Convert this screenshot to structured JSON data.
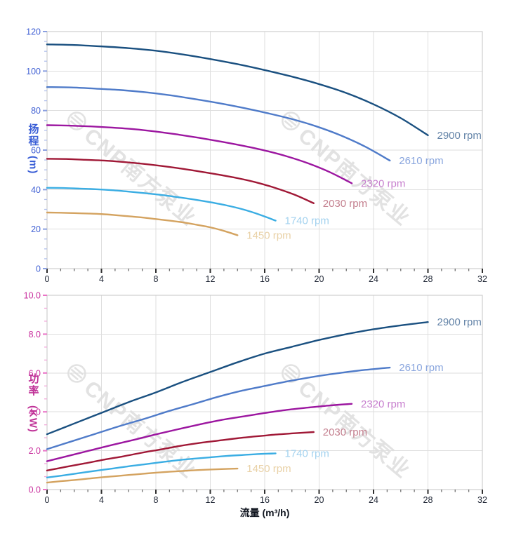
{
  "watermark": {
    "text": "CNP南方泵业"
  },
  "x_axis": {
    "title": "流量 (m³/h)",
    "min": 0,
    "max": 32,
    "major_step": 4,
    "minor_per_major": 4,
    "tick_labels": [
      "0",
      "4",
      "8",
      "12",
      "16",
      "20",
      "24",
      "28",
      "32"
    ],
    "tick_label_color": "#1d2433",
    "tick_color": "#2f2f2f",
    "minor_tick_color": "#6e6e6e"
  },
  "style": {
    "grid_color": "#dedede",
    "border_color": "#c6c6c6",
    "background": "#ffffff"
  },
  "chart_data": [
    {
      "type": "line",
      "name": "head-vs-flow",
      "ylabel_zh": "扬程",
      "ylabel_unit": "(m)",
      "xlabel": "流量 (m³/h)",
      "xlim": [
        0,
        32
      ],
      "ylim": [
        0,
        120
      ],
      "y_major_step": 20,
      "y_minor_per_major": 4,
      "y_tick_labels": [
        "0",
        "20",
        "40",
        "60",
        "80",
        "100",
        "120"
      ],
      "grid": true,
      "legend_position": "end-of-curve",
      "axis": {
        "tick_label_color": "#4161d4",
        "tick_color": "#8ba0e0",
        "minor_tick_color": "#b2c1ec"
      },
      "series": [
        {
          "name": "2900 rpm",
          "color": "#1a5080",
          "label_color": "#6484a8",
          "points": [
            [
              0,
              113.5
            ],
            [
              2,
              113.2
            ],
            [
              4,
              112.5
            ],
            [
              6,
              111.6
            ],
            [
              8,
              110.3
            ],
            [
              10,
              108.4
            ],
            [
              12,
              106.1
            ],
            [
              14,
              103.5
            ],
            [
              16,
              100.5
            ],
            [
              18,
              97.2
            ],
            [
              20,
              93.4
            ],
            [
              22,
              88.9
            ],
            [
              24,
              83.2
            ],
            [
              26,
              76.2
            ],
            [
              28,
              67.5
            ]
          ]
        },
        {
          "name": "2610 rpm",
          "color": "#4f7bc9",
          "label_color": "#8aa6de",
          "points": [
            [
              0,
              91.9
            ],
            [
              1.8,
              91.7
            ],
            [
              3.6,
              91.1
            ],
            [
              5.4,
              90.4
            ],
            [
              7.2,
              89.3
            ],
            [
              9,
              87.8
            ],
            [
              10.8,
              85.9
            ],
            [
              12.6,
              83.8
            ],
            [
              14.4,
              81.4
            ],
            [
              16.2,
              78.7
            ],
            [
              18,
              75.7
            ],
            [
              19.8,
              72.0
            ],
            [
              21.6,
              67.4
            ],
            [
              23.4,
              61.7
            ],
            [
              25.2,
              54.7
            ]
          ]
        },
        {
          "name": "2320 rpm",
          "color": "#9c16a0",
          "label_color": "#c77fce",
          "points": [
            [
              0,
              72.6
            ],
            [
              1.6,
              72.4
            ],
            [
              3.2,
              72.0
            ],
            [
              4.8,
              71.4
            ],
            [
              6.4,
              70.6
            ],
            [
              8,
              69.4
            ],
            [
              9.6,
              67.9
            ],
            [
              11.2,
              66.2
            ],
            [
              12.8,
              64.3
            ],
            [
              14.4,
              62.2
            ],
            [
              16,
              59.8
            ],
            [
              17.6,
              56.9
            ],
            [
              19.2,
              53.3
            ],
            [
              20.8,
              48.8
            ],
            [
              22.4,
              43.2
            ]
          ]
        },
        {
          "name": "2030 rpm",
          "color": "#a01836",
          "label_color": "#c4808f",
          "points": [
            [
              0,
              55.6
            ],
            [
              1.4,
              55.5
            ],
            [
              2.8,
              55.1
            ],
            [
              4.2,
              54.7
            ],
            [
              5.6,
              54.0
            ],
            [
              7,
              53.1
            ],
            [
              8.4,
              52.0
            ],
            [
              9.8,
              50.7
            ],
            [
              11.2,
              49.2
            ],
            [
              12.6,
              47.6
            ],
            [
              14,
              45.8
            ],
            [
              15.4,
              43.6
            ],
            [
              16.8,
              40.8
            ],
            [
              18.2,
              37.4
            ],
            [
              19.6,
              33.1
            ]
          ]
        },
        {
          "name": "1740 rpm",
          "color": "#3aade3",
          "label_color": "#a3d2ef",
          "points": [
            [
              0,
              40.9
            ],
            [
              1.2,
              40.8
            ],
            [
              2.4,
              40.5
            ],
            [
              3.6,
              40.2
            ],
            [
              4.8,
              39.7
            ],
            [
              6,
              39.0
            ],
            [
              7.2,
              38.2
            ],
            [
              8.4,
              37.3
            ],
            [
              9.6,
              36.2
            ],
            [
              10.8,
              35.0
            ],
            [
              12,
              33.6
            ],
            [
              13.2,
              32.0
            ],
            [
              14.4,
              30.0
            ],
            [
              15.6,
              27.4
            ],
            [
              16.8,
              24.3
            ]
          ]
        },
        {
          "name": "1450 rpm",
          "color": "#d4a360",
          "label_color": "#e9d1a6",
          "points": [
            [
              0,
              28.4
            ],
            [
              1,
              28.3
            ],
            [
              2,
              28.1
            ],
            [
              3,
              27.9
            ],
            [
              4,
              27.6
            ],
            [
              5,
              27.1
            ],
            [
              6,
              26.5
            ],
            [
              7,
              25.9
            ],
            [
              8,
              25.1
            ],
            [
              9,
              24.3
            ],
            [
              10,
              23.4
            ],
            [
              11,
              22.2
            ],
            [
              12,
              20.9
            ],
            [
              13,
              19.1
            ],
            [
              14,
              16.9
            ]
          ]
        }
      ]
    },
    {
      "type": "line",
      "name": "power-vs-flow",
      "ylabel_zh": "功率",
      "ylabel_unit": "(KW)",
      "xlabel": "流量 (m³/h)",
      "xlim": [
        0,
        32
      ],
      "ylim": [
        0,
        10
      ],
      "y_major_step": 2,
      "y_minor_per_major": 3,
      "y_tick_labels": [
        "0.0",
        "2.0",
        "4.0",
        "6.0",
        "8.0",
        "10.0"
      ],
      "grid": true,
      "legend_position": "end-of-curve",
      "axis": {
        "tick_label_color": "#c92f9e",
        "tick_color": "#ea74c6",
        "minor_tick_color": "#f2a9da"
      },
      "series": [
        {
          "name": "2900 rpm",
          "color": "#1a5080",
          "label_color": "#6484a8",
          "points": [
            [
              0,
              2.85
            ],
            [
              2,
              3.4
            ],
            [
              4,
              3.95
            ],
            [
              6,
              4.5
            ],
            [
              8,
              5.0
            ],
            [
              10,
              5.55
            ],
            [
              12,
              6.05
            ],
            [
              14,
              6.55
            ],
            [
              16,
              7.0
            ],
            [
              18,
              7.35
            ],
            [
              20,
              7.7
            ],
            [
              22,
              8.0
            ],
            [
              24,
              8.25
            ],
            [
              26,
              8.45
            ],
            [
              28,
              8.62
            ]
          ]
        },
        {
          "name": "2610 rpm",
          "color": "#4f7bc9",
          "label_color": "#8aa6de",
          "points": [
            [
              0,
              2.08
            ],
            [
              1.8,
              2.48
            ],
            [
              3.6,
              2.88
            ],
            [
              5.4,
              3.28
            ],
            [
              7.2,
              3.65
            ],
            [
              9,
              4.05
            ],
            [
              10.8,
              4.41
            ],
            [
              12.6,
              4.78
            ],
            [
              14.4,
              5.1
            ],
            [
              16.2,
              5.36
            ],
            [
              18,
              5.61
            ],
            [
              19.8,
              5.83
            ],
            [
              21.6,
              6.01
            ],
            [
              23.4,
              6.16
            ],
            [
              25.2,
              6.28
            ]
          ]
        },
        {
          "name": "2320 rpm",
          "color": "#9c16a0",
          "label_color": "#c77fce",
          "points": [
            [
              0,
              1.46
            ],
            [
              1.6,
              1.74
            ],
            [
              3.2,
              2.02
            ],
            [
              4.8,
              2.3
            ],
            [
              6.4,
              2.56
            ],
            [
              8,
              2.84
            ],
            [
              9.6,
              3.1
            ],
            [
              11.2,
              3.35
            ],
            [
              12.8,
              3.58
            ],
            [
              14.4,
              3.76
            ],
            [
              16,
              3.94
            ],
            [
              17.6,
              4.1
            ],
            [
              19.2,
              4.22
            ],
            [
              20.8,
              4.33
            ],
            [
              22.4,
              4.41
            ]
          ]
        },
        {
          "name": "2030 rpm",
          "color": "#a01836",
          "label_color": "#c4808f",
          "points": [
            [
              0,
              0.98
            ],
            [
              1.4,
              1.17
            ],
            [
              2.8,
              1.35
            ],
            [
              4.2,
              1.54
            ],
            [
              5.6,
              1.71
            ],
            [
              7,
              1.9
            ],
            [
              8.4,
              2.07
            ],
            [
              9.8,
              2.25
            ],
            [
              11.2,
              2.4
            ],
            [
              12.6,
              2.52
            ],
            [
              14,
              2.64
            ],
            [
              15.4,
              2.74
            ],
            [
              16.8,
              2.83
            ],
            [
              18.2,
              2.9
            ],
            [
              19.6,
              2.96
            ]
          ]
        },
        {
          "name": "1740 rpm",
          "color": "#3aade3",
          "label_color": "#a3d2ef",
          "points": [
            [
              0,
              0.62
            ],
            [
              1.2,
              0.73
            ],
            [
              2.4,
              0.85
            ],
            [
              3.6,
              0.97
            ],
            [
              4.8,
              1.08
            ],
            [
              6,
              1.2
            ],
            [
              7.2,
              1.3
            ],
            [
              8.4,
              1.41
            ],
            [
              9.6,
              1.51
            ],
            [
              10.8,
              1.59
            ],
            [
              12,
              1.66
            ],
            [
              13.2,
              1.73
            ],
            [
              14.4,
              1.78
            ],
            [
              15.6,
              1.83
            ],
            [
              16.8,
              1.86
            ]
          ]
        },
        {
          "name": "1450 rpm",
          "color": "#d4a360",
          "label_color": "#e9d1a6",
          "points": [
            [
              0,
              0.36
            ],
            [
              1,
              0.43
            ],
            [
              2,
              0.49
            ],
            [
              3,
              0.56
            ],
            [
              4,
              0.63
            ],
            [
              5,
              0.69
            ],
            [
              6,
              0.75
            ],
            [
              7,
              0.81
            ],
            [
              8,
              0.87
            ],
            [
              9,
              0.92
            ],
            [
              10,
              0.96
            ],
            [
              11,
              1.0
            ],
            [
              12,
              1.03
            ],
            [
              13,
              1.06
            ],
            [
              14,
              1.08
            ]
          ]
        }
      ]
    }
  ]
}
